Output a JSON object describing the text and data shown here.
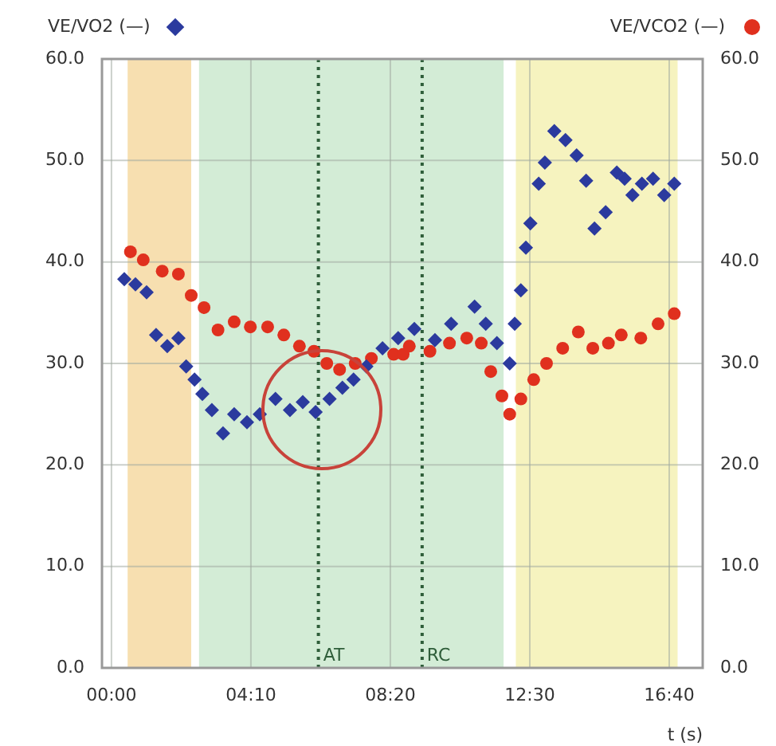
{
  "chart_data": {
    "type": "scatter",
    "xlabel": "t (s)",
    "xlim": [
      -17,
      1060
    ],
    "xticks": [
      {
        "value": 0,
        "label": "00:00"
      },
      {
        "value": 250,
        "label": "04:10"
      },
      {
        "value": 500,
        "label": "08:20"
      },
      {
        "value": 750,
        "label": "12:30"
      },
      {
        "value": 1000,
        "label": "16:40"
      }
    ],
    "ylim": [
      0,
      60
    ],
    "yticks": [
      {
        "value": 0,
        "label": "0.0"
      },
      {
        "value": 10,
        "label": "10.0"
      },
      {
        "value": 20,
        "label": "20.0"
      },
      {
        "value": 30,
        "label": "30.0"
      },
      {
        "value": 40,
        "label": "40.0"
      },
      {
        "value": 50,
        "label": "50.0"
      },
      {
        "value": 60,
        "label": "60.0"
      }
    ],
    "y2lim": [
      0,
      60
    ],
    "y2ticks": [
      {
        "value": 0,
        "label": "0.0"
      },
      {
        "value": 10,
        "label": "10.0"
      },
      {
        "value": 20,
        "label": "20.0"
      },
      {
        "value": 30,
        "label": "30.0"
      },
      {
        "value": 40,
        "label": "40.0"
      },
      {
        "value": 50,
        "label": "50.0"
      },
      {
        "value": 60,
        "label": "60.0"
      }
    ],
    "grid": true,
    "legend": "top",
    "series": [
      {
        "name": "VE/VO2 (—)",
        "color": "#2b3a9e",
        "marker": "diamond",
        "x": [
          23,
          43,
          63,
          80,
          100,
          120,
          134,
          149,
          163,
          180,
          200,
          220,
          243,
          266,
          294,
          320,
          343,
          366,
          391,
          414,
          434,
          457,
          486,
          514,
          543,
          580,
          609,
          651,
          671,
          691,
          714,
          723,
          734,
          743,
          751,
          766,
          777,
          794,
          814,
          834,
          851,
          866,
          886,
          906,
          920,
          934,
          951,
          971,
          991,
          1009
        ],
        "values": [
          38.3,
          37.8,
          37,
          32.8,
          31.7,
          32.5,
          29.7,
          28.4,
          27,
          25.4,
          23.1,
          25,
          24.2,
          25,
          26.5,
          25.4,
          26.2,
          25.2,
          26.5,
          27.6,
          28.4,
          29.7,
          31.5,
          32.5,
          33.4,
          32.3,
          33.9,
          35.6,
          33.9,
          32,
          30,
          33.9,
          37.2,
          41.4,
          43.8,
          47.7,
          49.8,
          52.9,
          52,
          50.5,
          48,
          43.3,
          44.9,
          48.8,
          48.2,
          46.6,
          47.7,
          48.2,
          46.6,
          47.7
        ]
      },
      {
        "name": "VE/VCO2 (—)",
        "color": "#e0301e",
        "marker": "circle",
        "axis": "y2",
        "x": [
          34,
          57,
          91,
          120,
          143,
          166,
          191,
          220,
          249,
          280,
          309,
          337,
          363,
          386,
          409,
          437,
          466,
          494,
          506,
          523,
          534,
          571,
          606,
          637,
          663,
          680,
          700,
          714,
          734,
          757,
          780,
          809,
          837,
          863,
          891,
          914,
          949,
          980,
          1009
        ],
        "values": [
          41,
          40.2,
          39.1,
          38.8,
          36.7,
          35.5,
          33.3,
          34.1,
          33.6,
          33.6,
          32.8,
          31.7,
          31.2,
          30,
          29.4,
          30,
          30.5,
          null,
          30.9,
          30.9,
          31.7,
          31.2,
          32,
          32.5,
          32,
          29.2,
          26.8,
          25,
          26.5,
          28.4,
          30,
          31.5,
          33.1,
          31.5,
          32,
          32.8,
          32.5,
          33.9,
          34.9
        ]
      }
    ],
    "bands": [
      {
        "axis": "x",
        "from": 29,
        "to": 143,
        "color": "#f7dfb0"
      },
      {
        "axis": "x",
        "from": 157,
        "to": 703,
        "color": "#d3ecd6"
      },
      {
        "axis": "x",
        "from": 725,
        "to": 1015,
        "color": "#f6f3bf"
      }
    ],
    "ref_lines": [
      {
        "axis": "x",
        "value": 371,
        "label": "AT",
        "color": "#2f5e3a",
        "line_style": "dotted"
      },
      {
        "axis": "x",
        "value": 557,
        "label": "RC",
        "color": "#2f5e3a",
        "line_style": "dotted"
      }
    ]
  }
}
